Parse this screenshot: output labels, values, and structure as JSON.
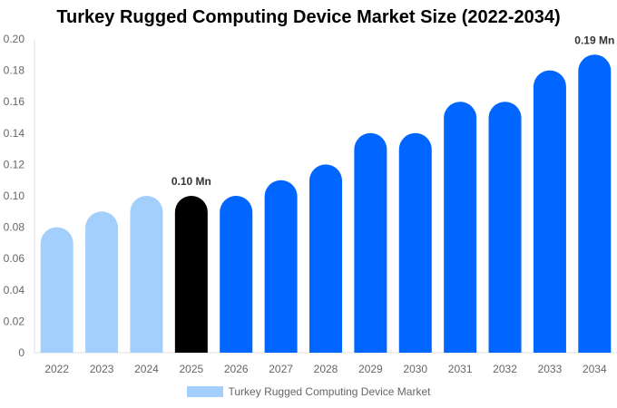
{
  "chart_data": {
    "type": "bar",
    "title": "Turkey Rugged Computing Device Market Size (2022-2034)",
    "categories": [
      "2022",
      "2023",
      "2024",
      "2025",
      "2026",
      "2027",
      "2028",
      "2029",
      "2030",
      "2031",
      "2032",
      "2033",
      "2034"
    ],
    "series": [
      {
        "name": "Turkey Rugged Computing Device Market",
        "values": [
          0.08,
          0.09,
          0.1,
          0.1,
          0.1,
          0.11,
          0.12,
          0.14,
          0.14,
          0.16,
          0.16,
          0.18,
          0.19
        ]
      }
    ],
    "ylim": [
      0,
      0.2
    ],
    "yticks": [
      "0",
      "0.02",
      "0.04",
      "0.06",
      "0.08",
      "0.10",
      "0.12",
      "0.14",
      "0.16",
      "0.18",
      "0.20"
    ],
    "data_labels": [
      {
        "category": "2025",
        "text": "0.10 Mn"
      },
      {
        "category": "2034",
        "text": "0.19 Mn"
      }
    ],
    "grid": false,
    "legend_placement": "bottom",
    "colors": {
      "historical": "#a3cffd",
      "base_year": "#000000",
      "forecast": "#0066ff"
    },
    "bar_color_groups": [
      "historical",
      "historical",
      "historical",
      "base_year",
      "forecast",
      "forecast",
      "forecast",
      "forecast",
      "forecast",
      "forecast",
      "forecast",
      "forecast",
      "forecast"
    ]
  }
}
